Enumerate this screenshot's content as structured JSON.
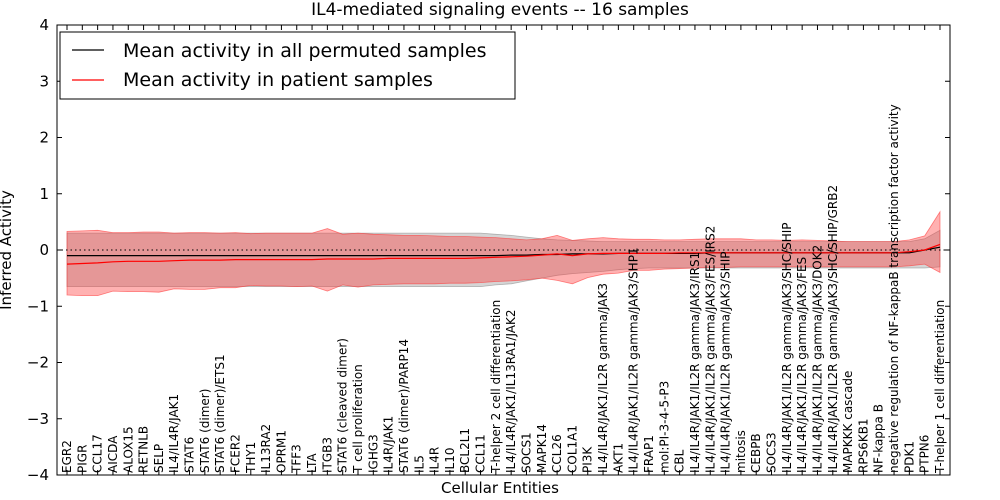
{
  "chart_data": {
    "type": "line",
    "title": "IL4-mediated signaling events -- 16 samples",
    "xlabel": "Cellular Entities",
    "ylabel": "Inferred Activity",
    "ylim": [
      -4,
      4
    ],
    "yticks": [
      -4,
      -3,
      -2,
      -1,
      0,
      1,
      2,
      3,
      4
    ],
    "reference_line": 0,
    "legend_location": "upper-left",
    "categories": [
      "EGR2",
      "PIGR",
      "CCL17",
      "AICDA",
      "ALOX15",
      "RETNLB",
      "SELP",
      "IL4/IL4R/JAK1",
      "STAT6",
      "STAT6 (dimer)",
      "STAT6 (dimer)/ETS1",
      "FCER2",
      "THY1",
      "IL13RA2",
      "OPRM1",
      "TFF3",
      "LTA",
      "ITGB3",
      "STAT6 (cleaved dimer)",
      "T cell proliferation",
      "IGHG3",
      "IL4R/JAK1",
      "STAT6 (dimer)/PARP14",
      "IL5",
      "IL4R",
      "IL10",
      "BCL2L1",
      "CCL11",
      "T-helper 2 cell differentiation",
      "IL4/IL4R/JAK1/IL13RA1/JAK2",
      "SOCS1",
      "MAPK14",
      "CCL26",
      "COL1A1",
      "PI3K",
      "IL4/IL4R/JAK1/IL2R gamma/JAK3",
      "AKT1",
      "IL4/IL4R/JAK1/IL2R gamma/JAK3/SHP1",
      "FRAP1",
      "mol:PI-3-4-5-P3",
      "CBL",
      "IL4/IL4R/JAK1/IL2R gamma/JAK3/IRS1",
      "IL4/IL4R/JAK1/IL2R gamma/JAK3/FES/IRS2",
      "IL4/IL4R/JAK1/IL2R gamma/JAK3/SHIP",
      "mitosis",
      "CEBPB",
      "SOCS3",
      "IL4/IL4R/JAK1/IL2R gamma/JAK3/SHC/SHIP",
      "IL4/IL4R/JAK1/IL2R gamma/JAK3/FES",
      "IL4/IL4R/JAK1/IL2R gamma/JAK3/DOK2",
      "IL4/IL4R/JAK1/IL2R gamma/JAK3/SHC/SHIP/GRB2",
      "MAPKKK cascade",
      "RPS6KB1",
      "NF-kappa B",
      "negative regulation of NF-kappaB transcription factor activity",
      "PDK1",
      "PTPN6",
      "T-helper 1 cell differentiation"
    ],
    "series": [
      {
        "name": "Mean activity in all permuted samples",
        "color": "#000000",
        "band_color": "#888888",
        "values": [
          -0.1,
          -0.1,
          -0.1,
          -0.1,
          -0.1,
          -0.1,
          -0.1,
          -0.1,
          -0.1,
          -0.1,
          -0.1,
          -0.1,
          -0.1,
          -0.1,
          -0.1,
          -0.1,
          -0.1,
          -0.1,
          -0.1,
          -0.1,
          -0.1,
          -0.1,
          -0.1,
          -0.1,
          -0.1,
          -0.1,
          -0.1,
          -0.1,
          -0.1,
          -0.09,
          -0.09,
          -0.08,
          -0.08,
          -0.07,
          -0.07,
          -0.07,
          -0.06,
          -0.06,
          -0.06,
          -0.06,
          -0.06,
          -0.06,
          -0.05,
          -0.05,
          -0.05,
          -0.05,
          -0.05,
          -0.05,
          -0.05,
          -0.05,
          -0.05,
          -0.05,
          -0.05,
          -0.05,
          -0.05,
          -0.05,
          0.0,
          0.05
        ],
        "lower": [
          -0.65,
          -0.65,
          -0.65,
          -0.65,
          -0.65,
          -0.65,
          -0.65,
          -0.65,
          -0.65,
          -0.65,
          -0.65,
          -0.65,
          -0.65,
          -0.65,
          -0.65,
          -0.65,
          -0.65,
          -0.65,
          -0.65,
          -0.65,
          -0.65,
          -0.65,
          -0.65,
          -0.65,
          -0.65,
          -0.65,
          -0.65,
          -0.65,
          -0.62,
          -0.6,
          -0.55,
          -0.5,
          -0.45,
          -0.42,
          -0.4,
          -0.38,
          -0.35,
          -0.33,
          -0.32,
          -0.32,
          -0.32,
          -0.32,
          -0.32,
          -0.32,
          -0.32,
          -0.32,
          -0.32,
          -0.32,
          -0.32,
          -0.32,
          -0.32,
          -0.32,
          -0.32,
          -0.32,
          -0.32,
          -0.32,
          -0.32,
          -0.3
        ],
        "upper": [
          0.3,
          0.3,
          0.3,
          0.3,
          0.3,
          0.3,
          0.3,
          0.3,
          0.3,
          0.3,
          0.3,
          0.3,
          0.3,
          0.3,
          0.3,
          0.3,
          0.3,
          0.3,
          0.3,
          0.3,
          0.3,
          0.3,
          0.3,
          0.3,
          0.3,
          0.3,
          0.3,
          0.3,
          0.28,
          0.26,
          0.23,
          0.2,
          0.18,
          0.17,
          0.16,
          0.15,
          0.15,
          0.15,
          0.15,
          0.15,
          0.15,
          0.15,
          0.15,
          0.15,
          0.15,
          0.15,
          0.15,
          0.15,
          0.15,
          0.15,
          0.15,
          0.15,
          0.15,
          0.15,
          0.15,
          0.15,
          0.2,
          0.35
        ]
      },
      {
        "name": "Mean activity in patient samples",
        "color": "#ff0000",
        "band_color": "#ff3333",
        "values": [
          -0.25,
          -0.24,
          -0.23,
          -0.21,
          -0.2,
          -0.2,
          -0.2,
          -0.19,
          -0.18,
          -0.18,
          -0.18,
          -0.17,
          -0.17,
          -0.17,
          -0.17,
          -0.17,
          -0.17,
          -0.16,
          -0.16,
          -0.16,
          -0.16,
          -0.15,
          -0.15,
          -0.15,
          -0.15,
          -0.15,
          -0.15,
          -0.14,
          -0.13,
          -0.12,
          -0.11,
          -0.09,
          -0.07,
          -0.1,
          -0.07,
          -0.06,
          -0.06,
          -0.06,
          -0.06,
          -0.06,
          -0.05,
          -0.05,
          -0.05,
          -0.05,
          -0.05,
          -0.05,
          -0.05,
          -0.05,
          -0.05,
          -0.05,
          -0.05,
          -0.05,
          -0.05,
          -0.05,
          -0.05,
          -0.03,
          0.0,
          0.1
        ],
        "lower": [
          -0.8,
          -0.81,
          -0.81,
          -0.73,
          -0.74,
          -0.74,
          -0.75,
          -0.69,
          -0.7,
          -0.7,
          -0.67,
          -0.67,
          -0.63,
          -0.64,
          -0.64,
          -0.65,
          -0.64,
          -0.73,
          -0.62,
          -0.66,
          -0.62,
          -0.61,
          -0.6,
          -0.6,
          -0.6,
          -0.59,
          -0.59,
          -0.58,
          -0.56,
          -0.55,
          -0.53,
          -0.5,
          -0.54,
          -0.6,
          -0.49,
          -0.43,
          -0.41,
          -0.36,
          -0.36,
          -0.34,
          -0.33,
          -0.32,
          -0.31,
          -0.31,
          -0.3,
          -0.3,
          -0.3,
          -0.3,
          -0.3,
          -0.3,
          -0.3,
          -0.3,
          -0.3,
          -0.3,
          -0.3,
          -0.28,
          -0.25,
          -0.4
        ],
        "upper": [
          0.33,
          0.34,
          0.35,
          0.31,
          0.31,
          0.32,
          0.32,
          0.3,
          0.31,
          0.31,
          0.3,
          0.31,
          0.29,
          0.3,
          0.3,
          0.3,
          0.3,
          0.38,
          0.28,
          0.3,
          0.28,
          0.27,
          0.26,
          0.26,
          0.25,
          0.24,
          0.24,
          0.23,
          0.22,
          0.2,
          0.18,
          0.2,
          0.26,
          0.17,
          0.2,
          0.22,
          0.2,
          0.19,
          0.19,
          0.18,
          0.18,
          0.19,
          0.2,
          0.2,
          0.2,
          0.18,
          0.18,
          0.17,
          0.18,
          0.17,
          0.16,
          0.15,
          0.15,
          0.15,
          0.15,
          0.18,
          0.25,
          0.68
        ]
      }
    ]
  }
}
